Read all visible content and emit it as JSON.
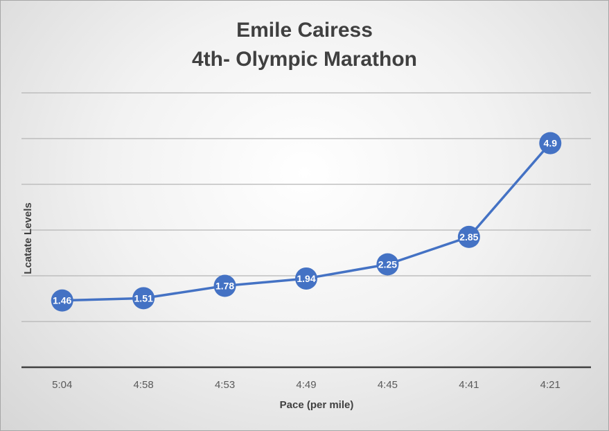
{
  "chart_data": {
    "type": "line",
    "title_lines": [
      "Emile Cairess",
      "4th- Olympic Marathon"
    ],
    "xlabel": "Pace (per mile)",
    "ylabel": "Lcatate Levels",
    "categories": [
      "5:04",
      "4:58",
      "4:53",
      "4:49",
      "4:45",
      "4:41",
      "4:21"
    ],
    "series": [
      {
        "values": [
          1.46,
          1.51,
          1.78,
          1.94,
          2.25,
          2.85,
          4.9
        ]
      }
    ],
    "ylim": [
      0,
      6
    ],
    "y_gridlines": [
      1,
      2,
      3,
      4,
      5,
      6
    ],
    "y_tick_labels_shown": false,
    "grid": true,
    "legend": "none",
    "line_color": "#4472c4",
    "marker_color": "#4472c4",
    "data_labels": true
  }
}
